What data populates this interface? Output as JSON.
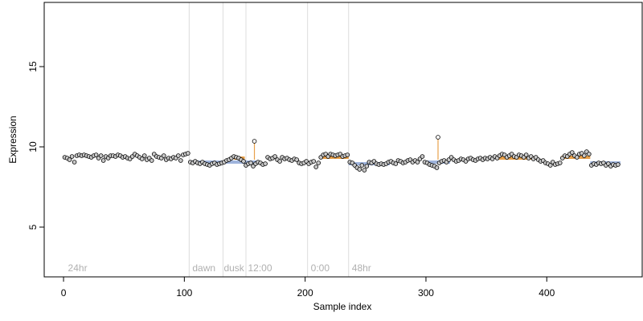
{
  "chart_data": {
    "type": "scatter",
    "xlabel": "Sample index",
    "ylabel": "Expression",
    "xlim": [
      -16,
      479
    ],
    "ylim": [
      1.9,
      19.0
    ],
    "x_ticks": [
      0,
      100,
      200,
      300,
      400
    ],
    "y_ticks": [
      5,
      10,
      15
    ],
    "baseline": 9.2,
    "vlines": [
      104,
      132,
      151,
      202,
      236
    ],
    "annotations": [
      {
        "text": "24hr",
        "x": 3
      },
      {
        "text": "dawn",
        "x": 106
      },
      {
        "text": "dusk",
        "x": 132
      },
      {
        "text": "12:00",
        "x": 152
      },
      {
        "text": "0:00",
        "x": 204
      },
      {
        "text": "48hr",
        "x": 238
      }
    ],
    "segments": [
      {
        "x0": 104,
        "x1": 150,
        "y": 9.05,
        "color": "#9fb4dc"
      },
      {
        "x0": 141,
        "x1": 150,
        "y": 9.3,
        "color": "#e8a04a"
      },
      {
        "x0": 150,
        "x1": 160,
        "y": 9.05,
        "color": "#9fb4dc"
      },
      {
        "x0": 212,
        "x1": 236,
        "y": 9.35,
        "color": "#e8a04a"
      },
      {
        "x0": 236,
        "x1": 270,
        "y": 8.95,
        "color": "#9fb4dc"
      },
      {
        "x0": 300,
        "x1": 320,
        "y": 9.05,
        "color": "#9fb4dc"
      },
      {
        "x0": 360,
        "x1": 392,
        "y": 9.3,
        "color": "#e8a04a"
      },
      {
        "x0": 412,
        "x1": 436,
        "y": 9.35,
        "color": "#e8a04a"
      },
      {
        "x0": 436,
        "x1": 461,
        "y": 9.0,
        "color": "#9fb4dc"
      }
    ],
    "outliers": [
      {
        "x": 158,
        "y": 10.35,
        "color": "#e8a04a"
      },
      {
        "x": 310,
        "y": 10.6,
        "color": "#e8a04a"
      }
    ],
    "point_fill": "#c9c9c9",
    "point_stroke": "#000000",
    "points": [
      [
        1,
        9.35
      ],
      [
        3,
        9.3
      ],
      [
        5,
        9.2
      ],
      [
        7,
        9.4
      ],
      [
        9,
        9.05
      ],
      [
        11,
        9.45
      ],
      [
        13,
        9.5
      ],
      [
        15,
        9.45
      ],
      [
        17,
        9.5
      ],
      [
        19,
        9.45
      ],
      [
        21,
        9.4
      ],
      [
        23,
        9.35
      ],
      [
        25,
        9.45
      ],
      [
        27,
        9.5
      ],
      [
        29,
        9.3
      ],
      [
        31,
        9.45
      ],
      [
        33,
        9.15
      ],
      [
        35,
        9.4
      ],
      [
        37,
        9.3
      ],
      [
        39,
        9.45
      ],
      [
        41,
        9.45
      ],
      [
        43,
        9.4
      ],
      [
        45,
        9.5
      ],
      [
        47,
        9.45
      ],
      [
        49,
        9.35
      ],
      [
        51,
        9.4
      ],
      [
        53,
        9.3
      ],
      [
        55,
        9.25
      ],
      [
        57,
        9.4
      ],
      [
        59,
        9.55
      ],
      [
        61,
        9.45
      ],
      [
        63,
        9.35
      ],
      [
        65,
        9.25
      ],
      [
        67,
        9.45
      ],
      [
        69,
        9.2
      ],
      [
        71,
        9.3
      ],
      [
        73,
        9.15
      ],
      [
        75,
        9.55
      ],
      [
        77,
        9.4
      ],
      [
        79,
        9.35
      ],
      [
        81,
        9.3
      ],
      [
        83,
        9.45
      ],
      [
        85,
        9.2
      ],
      [
        87,
        9.3
      ],
      [
        89,
        9.25
      ],
      [
        91,
        9.35
      ],
      [
        93,
        9.3
      ],
      [
        95,
        9.45
      ],
      [
        97,
        9.15
      ],
      [
        99,
        9.5
      ],
      [
        101,
        9.55
      ],
      [
        103,
        9.6
      ],
      [
        105,
        9.05
      ],
      [
        107,
        9.0
      ],
      [
        109,
        9.1
      ],
      [
        111,
        9.0
      ],
      [
        113,
        8.95
      ],
      [
        115,
        9.05
      ],
      [
        117,
        8.95
      ],
      [
        119,
        8.9
      ],
      [
        121,
        8.85
      ],
      [
        123,
        8.95
      ],
      [
        125,
        9.0
      ],
      [
        127,
        8.9
      ],
      [
        129,
        8.95
      ],
      [
        131,
        9.0
      ],
      [
        133,
        9.05
      ],
      [
        135,
        9.15
      ],
      [
        137,
        9.2
      ],
      [
        139,
        9.3
      ],
      [
        141,
        9.4
      ],
      [
        143,
        9.35
      ],
      [
        145,
        9.3
      ],
      [
        147,
        9.2
      ],
      [
        149,
        9.1
      ],
      [
        151,
        8.85
      ],
      [
        153,
        8.95
      ],
      [
        155,
        9.0
      ],
      [
        157,
        8.8
      ],
      [
        159,
        8.95
      ],
      [
        161,
        9.05
      ],
      [
        163,
        9.0
      ],
      [
        165,
        8.9
      ],
      [
        167,
        8.95
      ],
      [
        169,
        9.35
      ],
      [
        171,
        9.25
      ],
      [
        173,
        9.3
      ],
      [
        175,
        9.4
      ],
      [
        177,
        9.2
      ],
      [
        179,
        9.1
      ],
      [
        181,
        9.35
      ],
      [
        183,
        9.25
      ],
      [
        185,
        9.3
      ],
      [
        187,
        9.2
      ],
      [
        189,
        9.15
      ],
      [
        191,
        9.25
      ],
      [
        193,
        9.2
      ],
      [
        195,
        9.0
      ],
      [
        197,
        8.95
      ],
      [
        199,
        9.0
      ],
      [
        201,
        9.1
      ],
      [
        203,
        8.95
      ],
      [
        205,
        9.05
      ],
      [
        207,
        9.1
      ],
      [
        209,
        8.75
      ],
      [
        211,
        9.0
      ],
      [
        213,
        9.35
      ],
      [
        215,
        9.5
      ],
      [
        217,
        9.55
      ],
      [
        219,
        9.4
      ],
      [
        221,
        9.55
      ],
      [
        223,
        9.5
      ],
      [
        225,
        9.45
      ],
      [
        227,
        9.5
      ],
      [
        229,
        9.55
      ],
      [
        231,
        9.4
      ],
      [
        233,
        9.45
      ],
      [
        235,
        9.5
      ],
      [
        237,
        9.05
      ],
      [
        239,
        9.0
      ],
      [
        241,
        8.85
      ],
      [
        243,
        8.7
      ],
      [
        245,
        8.6
      ],
      [
        247,
        8.85
      ],
      [
        249,
        8.55
      ],
      [
        251,
        8.8
      ],
      [
        253,
        9.05
      ],
      [
        255,
        9.0
      ],
      [
        257,
        9.1
      ],
      [
        259,
        8.95
      ],
      [
        261,
        8.9
      ],
      [
        263,
        8.95
      ],
      [
        265,
        8.9
      ],
      [
        267,
        8.95
      ],
      [
        269,
        9.05
      ],
      [
        271,
        9.1
      ],
      [
        273,
        9.0
      ],
      [
        275,
        8.95
      ],
      [
        277,
        9.15
      ],
      [
        279,
        9.1
      ],
      [
        281,
        9.0
      ],
      [
        283,
        9.05
      ],
      [
        285,
        9.15
      ],
      [
        287,
        9.2
      ],
      [
        289,
        9.05
      ],
      [
        291,
        9.15
      ],
      [
        293,
        9.05
      ],
      [
        295,
        9.25
      ],
      [
        297,
        9.4
      ],
      [
        299,
        9.05
      ],
      [
        301,
        9.0
      ],
      [
        303,
        8.9
      ],
      [
        305,
        8.85
      ],
      [
        307,
        8.8
      ],
      [
        309,
        8.7
      ],
      [
        311,
        9.0
      ],
      [
        313,
        9.1
      ],
      [
        315,
        9.15
      ],
      [
        317,
        9.05
      ],
      [
        319,
        9.2
      ],
      [
        321,
        9.35
      ],
      [
        323,
        9.2
      ],
      [
        325,
        9.1
      ],
      [
        327,
        9.15
      ],
      [
        329,
        9.25
      ],
      [
        331,
        9.2
      ],
      [
        333,
        9.1
      ],
      [
        335,
        9.25
      ],
      [
        337,
        9.3
      ],
      [
        339,
        9.2
      ],
      [
        341,
        9.15
      ],
      [
        343,
        9.25
      ],
      [
        345,
        9.3
      ],
      [
        347,
        9.2
      ],
      [
        349,
        9.3
      ],
      [
        351,
        9.25
      ],
      [
        353,
        9.35
      ],
      [
        355,
        9.25
      ],
      [
        357,
        9.4
      ],
      [
        359,
        9.3
      ],
      [
        361,
        9.45
      ],
      [
        363,
        9.55
      ],
      [
        365,
        9.5
      ],
      [
        367,
        9.35
      ],
      [
        369,
        9.45
      ],
      [
        371,
        9.55
      ],
      [
        373,
        9.4
      ],
      [
        375,
        9.35
      ],
      [
        377,
        9.5
      ],
      [
        379,
        9.45
      ],
      [
        381,
        9.35
      ],
      [
        383,
        9.5
      ],
      [
        385,
        9.3
      ],
      [
        387,
        9.4
      ],
      [
        389,
        9.25
      ],
      [
        391,
        9.35
      ],
      [
        393,
        9.2
      ],
      [
        395,
        9.1
      ],
      [
        397,
        9.15
      ],
      [
        399,
        9.0
      ],
      [
        401,
        8.95
      ],
      [
        403,
        8.85
      ],
      [
        405,
        9.05
      ],
      [
        407,
        8.9
      ],
      [
        409,
        8.95
      ],
      [
        411,
        9.0
      ],
      [
        413,
        9.3
      ],
      [
        415,
        9.45
      ],
      [
        417,
        9.4
      ],
      [
        419,
        9.55
      ],
      [
        421,
        9.65
      ],
      [
        423,
        9.45
      ],
      [
        425,
        9.35
      ],
      [
        427,
        9.55
      ],
      [
        429,
        9.6
      ],
      [
        431,
        9.45
      ],
      [
        433,
        9.7
      ],
      [
        435,
        9.55
      ],
      [
        437,
        8.85
      ],
      [
        439,
        8.95
      ],
      [
        441,
        8.9
      ],
      [
        443,
        9.0
      ],
      [
        445,
        8.95
      ],
      [
        447,
        9.0
      ],
      [
        449,
        8.85
      ],
      [
        451,
        8.95
      ],
      [
        453,
        8.8
      ],
      [
        455,
        8.9
      ],
      [
        457,
        8.85
      ],
      [
        459,
        8.9
      ]
    ]
  }
}
